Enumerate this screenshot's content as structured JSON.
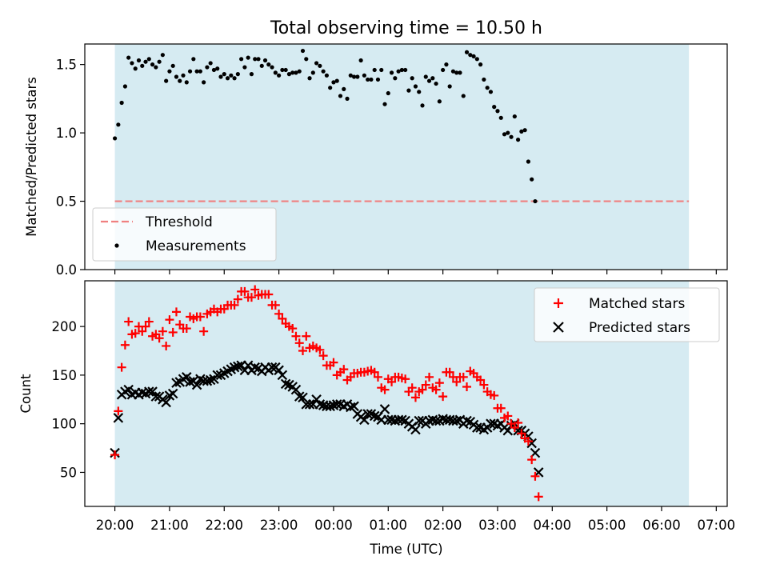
{
  "title": "Total observing time = 10.50 h",
  "colors": {
    "shade": "#add8e6",
    "threshold": "#f08080",
    "measurement": "#000000",
    "matched": "#ff0000",
    "predicted": "#000000"
  },
  "chart_data": [
    {
      "type": "scatter",
      "name": "ratio",
      "ylabel": "Matched/Predicted stars",
      "xlabel": "",
      "ylim": [
        0,
        1.65
      ],
      "yticks": [
        0.0,
        0.5,
        1.0,
        1.5
      ],
      "ytick_labels": [
        "0.0",
        "0.5",
        "1.0",
        "1.5"
      ],
      "xlim": [
        -0.55,
        11.2
      ],
      "shaded_span": [
        0,
        10.5
      ],
      "threshold": 0.5,
      "legend": {
        "position": "lower-left",
        "entries": [
          "Threshold",
          "Measurements"
        ]
      },
      "series": [
        {
          "name": "Measurements",
          "marker": "dot",
          "x_start": 0,
          "x_step": 0.0625,
          "values": [
            0.96,
            1.06,
            1.22,
            1.34,
            1.55,
            1.51,
            1.47,
            1.53,
            1.49,
            1.52,
            1.54,
            1.5,
            1.48,
            1.52,
            1.57,
            1.38,
            1.45,
            1.49,
            1.41,
            1.38,
            1.42,
            1.37,
            1.45,
            1.54,
            1.45,
            1.45,
            1.37,
            1.48,
            1.51,
            1.46,
            1.47,
            1.41,
            1.43,
            1.4,
            1.42,
            1.4,
            1.43,
            1.54,
            1.48,
            1.55,
            1.43,
            1.54,
            1.54,
            1.49,
            1.53,
            1.5,
            1.48,
            1.44,
            1.42,
            1.46,
            1.46,
            1.43,
            1.44,
            1.44,
            1.45,
            1.6,
            1.54,
            1.4,
            1.44,
            1.51,
            1.49,
            1.45,
            1.42,
            1.33,
            1.37,
            1.38,
            1.27,
            1.32,
            1.25,
            1.42,
            1.41,
            1.41,
            1.53,
            1.42,
            1.39,
            1.39,
            1.46,
            1.39,
            1.46,
            1.21,
            1.29,
            1.44,
            1.4,
            1.45,
            1.46,
            1.46,
            1.31,
            1.4,
            1.34,
            1.3,
            1.2,
            1.41,
            1.38,
            1.4,
            1.36,
            1.23,
            1.46,
            1.5,
            1.34,
            1.45,
            1.44,
            1.44,
            1.27,
            1.59,
            1.57,
            1.56,
            1.54,
            1.5,
            1.39,
            1.33,
            1.3,
            1.19,
            1.16,
            1.11,
            0.99,
            1.0,
            0.97,
            1.12,
            0.95,
            1.01,
            1.02,
            0.79,
            0.66,
            0.5
          ]
        }
      ]
    },
    {
      "type": "scatter",
      "name": "counts",
      "ylabel": "Count",
      "xlabel": "Time (UTC)",
      "ylim": [
        15,
        247
      ],
      "yticks": [
        50,
        100,
        150,
        200
      ],
      "ytick_labels": [
        "50",
        "100",
        "150",
        "200"
      ],
      "xlim": [
        -0.55,
        11.2
      ],
      "xticks": [
        0,
        1,
        2,
        3,
        4,
        5,
        6,
        7,
        8,
        9,
        10,
        11
      ],
      "xtick_labels": [
        "20:00",
        "21:00",
        "22:00",
        "23:00",
        "00:00",
        "01:00",
        "02:00",
        "03:00",
        "04:00",
        "05:00",
        "06:00",
        "07:00"
      ],
      "shaded_span": [
        0,
        10.5
      ],
      "legend": {
        "position": "top-right",
        "entries": [
          "Matched stars",
          "Predicted stars"
        ]
      },
      "series": [
        {
          "name": "Matched stars",
          "marker": "plus",
          "x_start": 0,
          "x_step": 0.0625,
          "values": [
            68,
            113,
            158,
            181,
            205,
            192,
            193,
            200,
            195,
            200,
            205,
            190,
            192,
            188,
            195,
            180,
            207,
            194,
            215,
            202,
            198,
            198,
            210,
            208,
            210,
            210,
            195,
            213,
            215,
            218,
            215,
            218,
            218,
            222,
            222,
            222,
            228,
            236,
            236,
            230,
            230,
            238,
            232,
            233,
            233,
            233,
            222,
            222,
            213,
            208,
            203,
            200,
            198,
            190,
            183,
            175,
            190,
            178,
            180,
            178,
            176,
            170,
            160,
            160,
            163,
            150,
            153,
            156,
            145,
            148,
            152,
            152,
            153,
            153,
            154,
            155,
            153,
            148,
            137,
            135,
            146,
            143,
            148,
            148,
            147,
            146,
            133,
            137,
            127,
            133,
            135,
            140,
            148,
            137,
            135,
            142,
            128,
            153,
            153,
            148,
            143,
            148,
            148,
            138,
            154,
            152,
            148,
            145,
            140,
            133,
            130,
            129,
            116,
            116,
            106,
            108,
            100,
            96,
            101,
            90,
            85,
            82,
            63,
            46,
            25
          ]
        },
        {
          "name": "Predicted stars",
          "marker": "x",
          "x_start": 0,
          "x_step": 0.0625,
          "values": [
            70,
            106,
            130,
            133,
            135,
            130,
            132,
            130,
            132,
            131,
            133,
            133,
            128,
            128,
            125,
            122,
            129,
            131,
            142,
            143,
            146,
            148,
            143,
            144,
            140,
            146,
            144,
            144,
            145,
            146,
            150,
            150,
            152,
            154,
            156,
            158,
            159,
            160,
            155,
            160,
            155,
            158,
            157,
            154,
            158,
            155,
            158,
            158,
            155,
            150,
            141,
            140,
            138,
            135,
            128,
            127,
            120,
            120,
            120,
            125,
            120,
            119,
            118,
            118,
            119,
            120,
            120,
            118,
            120,
            117,
            118,
            110,
            107,
            104,
            110,
            110,
            108,
            107,
            104,
            115,
            104,
            104,
            103,
            104,
            104,
            103,
            100,
            97,
            94,
            103,
            103,
            100,
            103,
            104,
            103,
            103,
            105,
            104,
            104,
            103,
            103,
            104,
            100,
            103,
            102,
            99,
            96,
            96,
            94,
            96,
            100,
            100,
            98,
            100,
            96,
            93,
            98,
            100,
            93,
            93,
            90,
            87,
            80,
            70,
            50
          ]
        }
      ]
    }
  ]
}
